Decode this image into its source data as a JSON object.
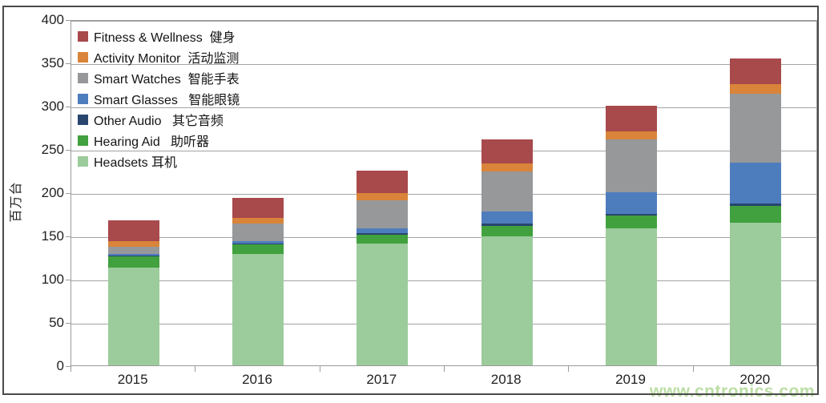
{
  "chart_data": {
    "type": "bar",
    "stacked": true,
    "title": "",
    "xlabel": "",
    "ylabel": "百万台",
    "ylim": [
      0,
      400
    ],
    "ytick_step": 50,
    "yticks": [
      "0",
      "50",
      "100",
      "150",
      "200",
      "250",
      "300",
      "350",
      "400"
    ],
    "grid": "horizontal",
    "legend_position": "inside-top-left",
    "categories": [
      "2015",
      "2016",
      "2017",
      "2018",
      "2019",
      "2020"
    ],
    "series": [
      {
        "name_en": "Headsets",
        "name_zh": "耳机",
        "color": "#9CCB9C",
        "values": [
          113,
          129,
          141,
          149,
          158,
          165
        ]
      },
      {
        "name_en": "Hearing Aid",
        "name_zh": "助听器",
        "color": "#41A13E",
        "values": [
          13,
          11,
          10,
          12,
          15,
          19
        ]
      },
      {
        "name_en": "Other Audio",
        "name_zh": "其它音频",
        "color": "#28466E",
        "values": [
          1,
          1,
          2,
          3,
          2,
          3
        ]
      },
      {
        "name_en": "Smart Glasses",
        "name_zh": "智能眼镜",
        "color": "#4E7DBE",
        "values": [
          2,
          3,
          5,
          14,
          25,
          47
        ]
      },
      {
        "name_en": "Smart Watches",
        "name_zh": "智能手表",
        "color": "#97989A",
        "values": [
          8,
          20,
          33,
          46,
          61,
          80
        ]
      },
      {
        "name_en": "Activity Monitor",
        "name_zh": "活动监测",
        "color": "#D9843A",
        "values": [
          7,
          6,
          8,
          9,
          9,
          11
        ]
      },
      {
        "name_en": "Fitness & Wellness",
        "name_zh": "健身",
        "color": "#A8494C",
        "values": [
          24,
          24,
          26,
          28,
          30,
          30
        ]
      }
    ],
    "totals": [
      168,
      194,
      225,
      261,
      300,
      355
    ],
    "legend_labels": [
      "Fitness & Wellness  健身",
      "Activity Monitor  活动监测",
      "Smart Watches  智能手表",
      "Smart Glasses   智能眼镜",
      "Other Audio   其它音频",
      "Hearing Aid   助听器",
      "Headsets 耳机"
    ]
  },
  "watermark": {
    "text": "www.cntronics.com",
    "color": "#96CD73"
  },
  "axis": {
    "y_title": "百万台"
  }
}
